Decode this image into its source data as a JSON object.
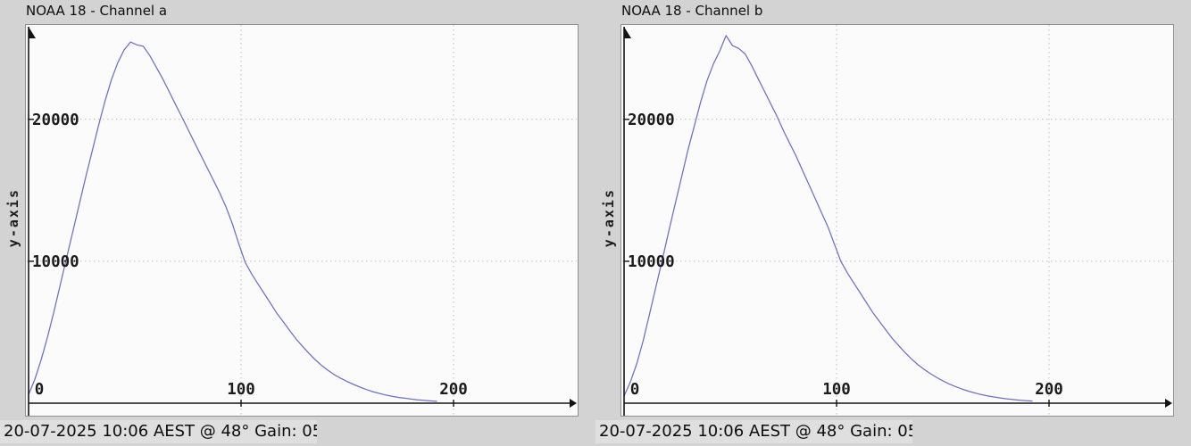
{
  "page": {
    "background": "#d3d3d3"
  },
  "chart_data": [
    {
      "type": "line",
      "title": "NOAA 18 - Channel a",
      "xlabel": "",
      "ylabel": "y-axis",
      "caption": "20-07-2025 10:06 AEST @ 48° Gain: 0",
      "caption_clipped": "5",
      "x_ticks": [
        0,
        100,
        200
      ],
      "y_ticks": [
        10000,
        20000
      ],
      "xlim": [
        0,
        258
      ],
      "ylim": [
        0,
        26650
      ],
      "grid": true,
      "legend": false,
      "line_color": "#6e6ec9",
      "x": [
        0,
        3,
        6,
        9,
        12,
        15,
        18,
        21,
        24,
        27,
        30,
        33,
        36,
        39,
        42,
        45,
        48,
        51,
        54,
        57,
        60,
        63,
        66,
        69,
        72,
        75,
        78,
        81,
        84,
        87,
        90,
        93,
        96,
        99,
        102,
        105,
        108,
        111,
        114,
        117,
        120,
        123,
        126,
        129,
        132,
        135,
        138,
        141,
        144,
        147,
        150,
        153,
        156,
        159,
        162,
        165,
        168,
        171,
        174,
        177,
        180,
        183,
        186,
        189,
        192
      ],
      "y": [
        600,
        1700,
        3100,
        4700,
        6500,
        8400,
        10300,
        12200,
        14100,
        16000,
        17800,
        19600,
        21300,
        22800,
        24000,
        24900,
        25450,
        25250,
        25150,
        24500,
        23700,
        22900,
        22000,
        21100,
        20200,
        19300,
        18400,
        17500,
        16600,
        15700,
        14800,
        13800,
        12600,
        11200,
        9900,
        9100,
        8400,
        7700,
        7000,
        6300,
        5700,
        5100,
        4500,
        4000,
        3500,
        3050,
        2650,
        2300,
        2000,
        1750,
        1520,
        1320,
        1130,
        960,
        810,
        690,
        580,
        490,
        410,
        350,
        290,
        240,
        200,
        165,
        135
      ]
    },
    {
      "type": "line",
      "title": "NOAA 18 - Channel b",
      "xlabel": "",
      "ylabel": "y-axis",
      "caption": "20-07-2025 10:06 AEST @ 48° Gain: 0",
      "caption_clipped": "5",
      "x_ticks": [
        0,
        100,
        200
      ],
      "y_ticks": [
        10000,
        20000
      ],
      "xlim": [
        0,
        258
      ],
      "ylim": [
        0,
        26650
      ],
      "grid": true,
      "legend": false,
      "line_color": "#6e6ec9",
      "x": [
        0,
        3,
        6,
        9,
        12,
        15,
        18,
        21,
        24,
        27,
        30,
        33,
        36,
        39,
        42,
        45,
        48,
        51,
        54,
        57,
        60,
        63,
        66,
        69,
        72,
        75,
        78,
        81,
        84,
        87,
        90,
        93,
        96,
        99,
        102,
        105,
        108,
        111,
        114,
        117,
        120,
        123,
        126,
        129,
        132,
        135,
        138,
        141,
        144,
        147,
        150,
        153,
        156,
        159,
        162,
        165,
        168,
        171,
        174,
        177,
        180,
        183,
        186,
        189,
        192
      ],
      "y": [
        500,
        1500,
        2800,
        4400,
        6300,
        8200,
        10100,
        12100,
        14000,
        15900,
        17800,
        19500,
        21200,
        22700,
        23900,
        24800,
        25900,
        25200,
        25000,
        24600,
        23800,
        22900,
        22000,
        21100,
        20200,
        19200,
        18300,
        17400,
        16400,
        15400,
        14400,
        13400,
        12400,
        11200,
        10000,
        9200,
        8500,
        7800,
        7100,
        6400,
        5800,
        5200,
        4600,
        4100,
        3600,
        3150,
        2750,
        2400,
        2100,
        1820,
        1580,
        1360,
        1170,
        1000,
        850,
        720,
        610,
        520,
        440,
        370,
        310,
        260,
        215,
        180,
        148
      ]
    }
  ]
}
